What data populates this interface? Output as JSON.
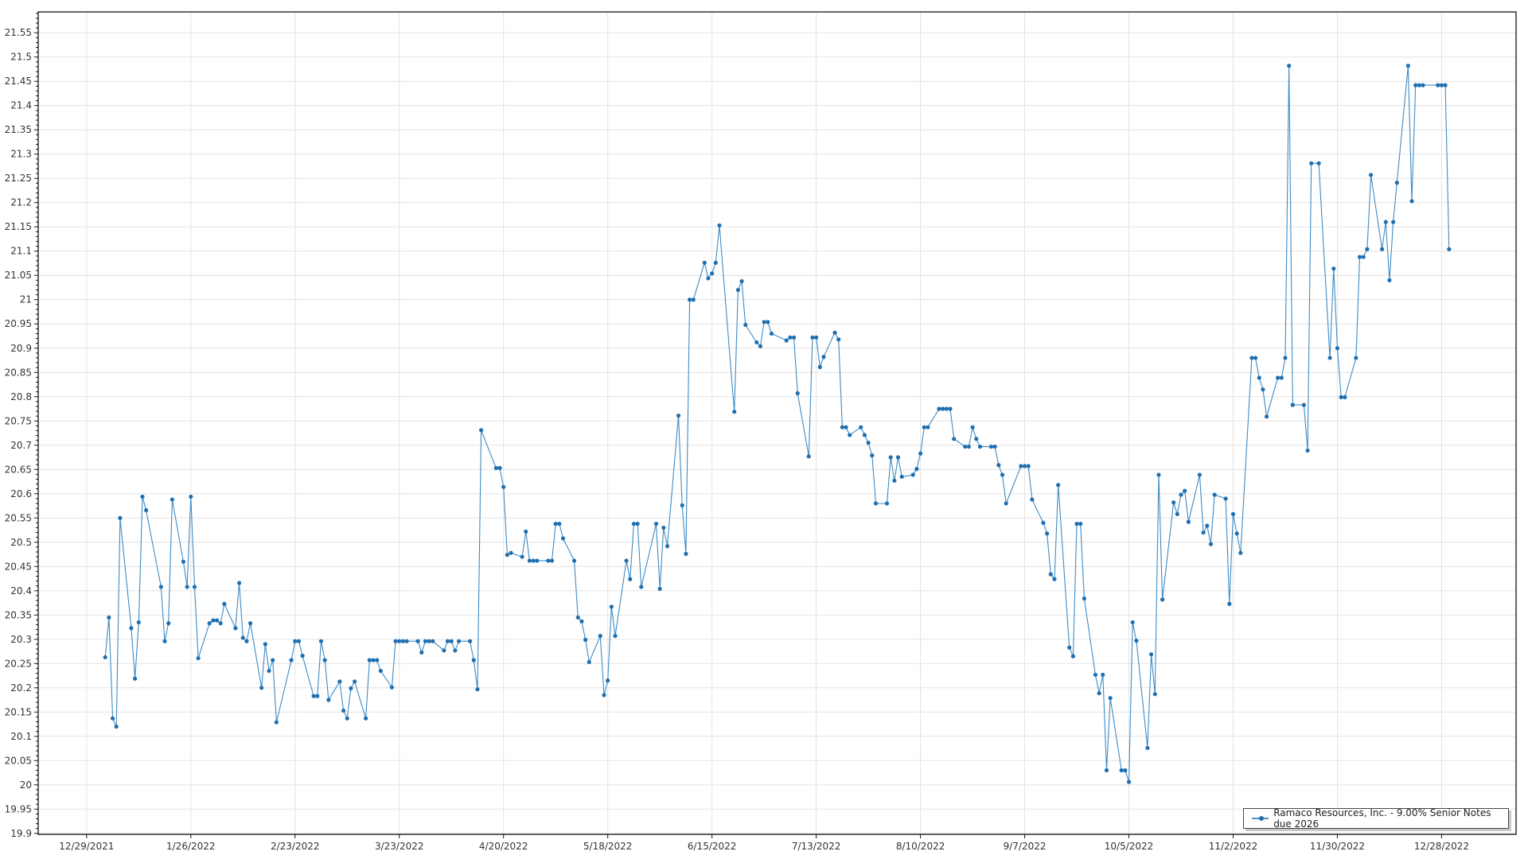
{
  "chart_data": {
    "type": "line",
    "title": "",
    "xlabel": "",
    "ylabel": "",
    "xlim": [
      "2021-12-16",
      "2023-01-17"
    ],
    "ylim": [
      19.898,
      21.593
    ],
    "grid": true,
    "legend_position": "bottom-right",
    "x_tick_labels": [
      "12/29/2021",
      "1/26/2022",
      "2/23/2022",
      "3/23/2022",
      "4/20/2022",
      "5/18/2022",
      "6/15/2022",
      "7/13/2022",
      "8/10/2022",
      "9/7/2022",
      "10/5/2022",
      "11/2/2022",
      "11/30/2022",
      "12/28/2022"
    ],
    "y_tick_labels": [
      "19.9",
      "19.95",
      "20",
      "20.05",
      "20.1",
      "20.15",
      "20.2",
      "20.25",
      "20.3",
      "20.35",
      "20.4",
      "20.45",
      "20.5",
      "20.55",
      "20.6",
      "20.65",
      "20.7",
      "20.75",
      "20.8",
      "20.85",
      "20.9",
      "20.95",
      "21",
      "21.05",
      "21.1",
      "21.15",
      "21.2",
      "21.25",
      "21.3",
      "21.35",
      "21.4",
      "21.45",
      "21.5",
      "21.55"
    ],
    "series": [
      {
        "name": "Ramaco Resources, Inc. - 9.00% Senior Notes due 2026",
        "color": "#1f6fb0",
        "points": [
          [
            "2022-01-03",
            20.263
          ],
          [
            "2022-01-04",
            20.345
          ],
          [
            "2022-01-05",
            20.137
          ],
          [
            "2022-01-06",
            20.12
          ],
          [
            "2022-01-07",
            20.55
          ],
          [
            "2022-01-10",
            20.323
          ],
          [
            "2022-01-11",
            20.219
          ],
          [
            "2022-01-12",
            20.335
          ],
          [
            "2022-01-13",
            20.594
          ],
          [
            "2022-01-14",
            20.566
          ],
          [
            "2022-01-18",
            20.408
          ],
          [
            "2022-01-19",
            20.296
          ],
          [
            "2022-01-20",
            20.333
          ],
          [
            "2022-01-21",
            20.588
          ],
          [
            "2022-01-24",
            20.46
          ],
          [
            "2022-01-25",
            20.408
          ],
          [
            "2022-01-26",
            20.594
          ],
          [
            "2022-01-27",
            20.408
          ],
          [
            "2022-01-28",
            20.261
          ],
          [
            "2022-01-31",
            20.333
          ],
          [
            "2022-02-01",
            20.339
          ],
          [
            "2022-02-02",
            20.339
          ],
          [
            "2022-02-03",
            20.333
          ],
          [
            "2022-02-04",
            20.373
          ],
          [
            "2022-02-07",
            20.323
          ],
          [
            "2022-02-08",
            20.416
          ],
          [
            "2022-02-09",
            20.303
          ],
          [
            "2022-02-10",
            20.296
          ],
          [
            "2022-02-11",
            20.333
          ],
          [
            "2022-02-14",
            20.2
          ],
          [
            "2022-02-15",
            20.29
          ],
          [
            "2022-02-16",
            20.235
          ],
          [
            "2022-02-17",
            20.257
          ],
          [
            "2022-02-18",
            20.129
          ],
          [
            "2022-02-22",
            20.257
          ],
          [
            "2022-02-23",
            20.296
          ],
          [
            "2022-02-24",
            20.296
          ],
          [
            "2022-02-25",
            20.266
          ],
          [
            "2022-02-28",
            20.183
          ],
          [
            "2022-03-01",
            20.183
          ],
          [
            "2022-03-02",
            20.296
          ],
          [
            "2022-03-03",
            20.257
          ],
          [
            "2022-03-04",
            20.175
          ],
          [
            "2022-03-07",
            20.213
          ],
          [
            "2022-03-08",
            20.153
          ],
          [
            "2022-03-09",
            20.137
          ],
          [
            "2022-03-10",
            20.199
          ],
          [
            "2022-03-11",
            20.213
          ],
          [
            "2022-03-14",
            20.137
          ],
          [
            "2022-03-15",
            20.257
          ],
          [
            "2022-03-16",
            20.257
          ],
          [
            "2022-03-17",
            20.257
          ],
          [
            "2022-03-18",
            20.235
          ],
          [
            "2022-03-21",
            20.201
          ],
          [
            "2022-03-22",
            20.296
          ],
          [
            "2022-03-23",
            20.296
          ],
          [
            "2022-03-24",
            20.296
          ],
          [
            "2022-03-25",
            20.296
          ],
          [
            "2022-03-28",
            20.296
          ],
          [
            "2022-03-29",
            20.273
          ],
          [
            "2022-03-30",
            20.296
          ],
          [
            "2022-03-31",
            20.296
          ],
          [
            "2022-04-01",
            20.296
          ],
          [
            "2022-04-04",
            20.277
          ],
          [
            "2022-04-05",
            20.296
          ],
          [
            "2022-04-06",
            20.296
          ],
          [
            "2022-04-07",
            20.277
          ],
          [
            "2022-04-08",
            20.296
          ],
          [
            "2022-04-11",
            20.296
          ],
          [
            "2022-04-12",
            20.257
          ],
          [
            "2022-04-13",
            20.197
          ],
          [
            "2022-04-14",
            20.731
          ],
          [
            "2022-04-18",
            20.653
          ],
          [
            "2022-04-19",
            20.653
          ],
          [
            "2022-04-20",
            20.614
          ],
          [
            "2022-04-21",
            20.474
          ],
          [
            "2022-04-22",
            20.478
          ],
          [
            "2022-04-25",
            20.47
          ],
          [
            "2022-04-26",
            20.522
          ],
          [
            "2022-04-27",
            20.462
          ],
          [
            "2022-04-28",
            20.462
          ],
          [
            "2022-04-29",
            20.462
          ],
          [
            "2022-05-02",
            20.462
          ],
          [
            "2022-05-03",
            20.462
          ],
          [
            "2022-05-04",
            20.538
          ],
          [
            "2022-05-05",
            20.538
          ],
          [
            "2022-05-06",
            20.508
          ],
          [
            "2022-05-09",
            20.462
          ],
          [
            "2022-05-10",
            20.345
          ],
          [
            "2022-05-11",
            20.337
          ],
          [
            "2022-05-12",
            20.299
          ],
          [
            "2022-05-13",
            20.253
          ],
          [
            "2022-05-16",
            20.307
          ],
          [
            "2022-05-17",
            20.185
          ],
          [
            "2022-05-18",
            20.215
          ],
          [
            "2022-05-19",
            20.367
          ],
          [
            "2022-05-20",
            20.307
          ],
          [
            "2022-05-23",
            20.462
          ],
          [
            "2022-05-24",
            20.424
          ],
          [
            "2022-05-25",
            20.538
          ],
          [
            "2022-05-26",
            20.538
          ],
          [
            "2022-05-27",
            20.408
          ],
          [
            "2022-05-31",
            20.538
          ],
          [
            "2022-06-01",
            20.404
          ],
          [
            "2022-06-02",
            20.53
          ],
          [
            "2022-06-03",
            20.492
          ],
          [
            "2022-06-06",
            20.761
          ],
          [
            "2022-06-07",
            20.576
          ],
          [
            "2022-06-08",
            20.476
          ],
          [
            "2022-06-09",
            21.0
          ],
          [
            "2022-06-10",
            21.0
          ],
          [
            "2022-06-13",
            21.076
          ],
          [
            "2022-06-14",
            21.044
          ],
          [
            "2022-06-15",
            21.054
          ],
          [
            "2022-06-16",
            21.076
          ],
          [
            "2022-06-17",
            21.153
          ],
          [
            "2022-06-21",
            20.769
          ],
          [
            "2022-06-22",
            21.02
          ],
          [
            "2022-06-23",
            21.038
          ],
          [
            "2022-06-24",
            20.948
          ],
          [
            "2022-06-27",
            20.912
          ],
          [
            "2022-06-28",
            20.904
          ],
          [
            "2022-06-29",
            20.954
          ],
          [
            "2022-06-30",
            20.954
          ],
          [
            "2022-07-01",
            20.93
          ],
          [
            "2022-07-05",
            20.916
          ],
          [
            "2022-07-06",
            20.922
          ],
          [
            "2022-07-07",
            20.922
          ],
          [
            "2022-07-08",
            20.807
          ],
          [
            "2022-07-11",
            20.677
          ],
          [
            "2022-07-12",
            20.922
          ],
          [
            "2022-07-13",
            20.922
          ],
          [
            "2022-07-14",
            20.861
          ],
          [
            "2022-07-15",
            20.882
          ],
          [
            "2022-07-18",
            20.932
          ],
          [
            "2022-07-19",
            20.918
          ],
          [
            "2022-07-20",
            20.737
          ],
          [
            "2022-07-21",
            20.737
          ],
          [
            "2022-07-22",
            20.721
          ],
          [
            "2022-07-25",
            20.737
          ],
          [
            "2022-07-26",
            20.721
          ],
          [
            "2022-07-27",
            20.705
          ],
          [
            "2022-07-28",
            20.679
          ],
          [
            "2022-07-29",
            20.58
          ],
          [
            "2022-08-01",
            20.58
          ],
          [
            "2022-08-02",
            20.675
          ],
          [
            "2022-08-03",
            20.627
          ],
          [
            "2022-08-04",
            20.675
          ],
          [
            "2022-08-05",
            20.635
          ],
          [
            "2022-08-08",
            20.639
          ],
          [
            "2022-08-09",
            20.651
          ],
          [
            "2022-08-10",
            20.683
          ],
          [
            "2022-08-11",
            20.737
          ],
          [
            "2022-08-12",
            20.737
          ],
          [
            "2022-08-15",
            20.775
          ],
          [
            "2022-08-16",
            20.775
          ],
          [
            "2022-08-17",
            20.775
          ],
          [
            "2022-08-18",
            20.775
          ],
          [
            "2022-08-19",
            20.713
          ],
          [
            "2022-08-22",
            20.697
          ],
          [
            "2022-08-23",
            20.697
          ],
          [
            "2022-08-24",
            20.737
          ],
          [
            "2022-08-25",
            20.713
          ],
          [
            "2022-08-26",
            20.697
          ],
          [
            "2022-08-29",
            20.697
          ],
          [
            "2022-08-30",
            20.697
          ],
          [
            "2022-08-31",
            20.659
          ],
          [
            "2022-09-01",
            20.639
          ],
          [
            "2022-09-02",
            20.58
          ],
          [
            "2022-09-06",
            20.657
          ],
          [
            "2022-09-07",
            20.657
          ],
          [
            "2022-09-08",
            20.657
          ],
          [
            "2022-09-09",
            20.588
          ],
          [
            "2022-09-12",
            20.54
          ],
          [
            "2022-09-13",
            20.518
          ],
          [
            "2022-09-14",
            20.434
          ],
          [
            "2022-09-15",
            20.424
          ],
          [
            "2022-09-16",
            20.618
          ],
          [
            "2022-09-19",
            20.283
          ],
          [
            "2022-09-20",
            20.265
          ],
          [
            "2022-09-21",
            20.538
          ],
          [
            "2022-09-22",
            20.538
          ],
          [
            "2022-09-23",
            20.384
          ],
          [
            "2022-09-26",
            20.227
          ],
          [
            "2022-09-27",
            20.189
          ],
          [
            "2022-09-28",
            20.227
          ],
          [
            "2022-09-29",
            20.03
          ],
          [
            "2022-09-30",
            20.179
          ],
          [
            "2022-10-03",
            20.03
          ],
          [
            "2022-10-04",
            20.03
          ],
          [
            "2022-10-05",
            20.006
          ],
          [
            "2022-10-06",
            20.335
          ],
          [
            "2022-10-07",
            20.297
          ],
          [
            "2022-10-10",
            20.076
          ],
          [
            "2022-10-11",
            20.269
          ],
          [
            "2022-10-12",
            20.187
          ],
          [
            "2022-10-13",
            20.639
          ],
          [
            "2022-10-14",
            20.382
          ],
          [
            "2022-10-17",
            20.582
          ],
          [
            "2022-10-18",
            20.558
          ],
          [
            "2022-10-19",
            20.598
          ],
          [
            "2022-10-20",
            20.606
          ],
          [
            "2022-10-21",
            20.542
          ],
          [
            "2022-10-24",
            20.639
          ],
          [
            "2022-10-25",
            20.52
          ],
          [
            "2022-10-26",
            20.534
          ],
          [
            "2022-10-27",
            20.496
          ],
          [
            "2022-10-28",
            20.598
          ],
          [
            "2022-10-31",
            20.59
          ],
          [
            "2022-11-01",
            20.373
          ],
          [
            "2022-11-02",
            20.558
          ],
          [
            "2022-11-03",
            20.518
          ],
          [
            "2022-11-04",
            20.478
          ],
          [
            "2022-11-07",
            20.88
          ],
          [
            "2022-11-08",
            20.88
          ],
          [
            "2022-11-09",
            20.839
          ],
          [
            "2022-11-10",
            20.815
          ],
          [
            "2022-11-11",
            20.759
          ],
          [
            "2022-11-14",
            20.839
          ],
          [
            "2022-11-15",
            20.839
          ],
          [
            "2022-11-16",
            20.88
          ],
          [
            "2022-11-17",
            21.482
          ],
          [
            "2022-11-18",
            20.783
          ],
          [
            "2022-11-21",
            20.783
          ],
          [
            "2022-11-22",
            20.689
          ],
          [
            "2022-11-23",
            21.281
          ],
          [
            "2022-11-25",
            21.281
          ],
          [
            "2022-11-28",
            20.88
          ],
          [
            "2022-11-29",
            21.064
          ],
          [
            "2022-11-30",
            20.9
          ],
          [
            "2022-12-01",
            20.799
          ],
          [
            "2022-12-02",
            20.799
          ],
          [
            "2022-12-05",
            20.88
          ],
          [
            "2022-12-06",
            21.088
          ],
          [
            "2022-12-07",
            21.088
          ],
          [
            "2022-12-08",
            21.104
          ],
          [
            "2022-12-09",
            21.257
          ],
          [
            "2022-12-12",
            21.104
          ],
          [
            "2022-12-13",
            21.16
          ],
          [
            "2022-12-14",
            21.04
          ],
          [
            "2022-12-15",
            21.16
          ],
          [
            "2022-12-16",
            21.241
          ],
          [
            "2022-12-19",
            21.482
          ],
          [
            "2022-12-20",
            21.203
          ],
          [
            "2022-12-21",
            21.442
          ],
          [
            "2022-12-22",
            21.442
          ],
          [
            "2022-12-23",
            21.442
          ],
          [
            "2022-12-27",
            21.442
          ],
          [
            "2022-12-28",
            21.442
          ],
          [
            "2022-12-29",
            21.442
          ],
          [
            "2022-12-30",
            21.104
          ]
        ]
      }
    ]
  }
}
